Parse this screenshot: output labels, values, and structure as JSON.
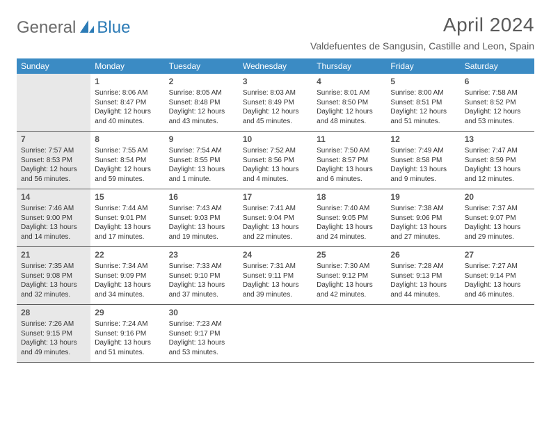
{
  "brand": {
    "general": "General",
    "blue": "Blue"
  },
  "header": {
    "month_title": "April 2024",
    "location": "Valdefuentes de Sangusin, Castille and Leon, Spain"
  },
  "weekdays": [
    "Sunday",
    "Monday",
    "Tuesday",
    "Wednesday",
    "Thursday",
    "Friday",
    "Saturday"
  ],
  "colors": {
    "header_bg": "#3b8bc4",
    "shaded_bg": "#e8e8e8",
    "text": "#333333",
    "muted": "#5a5a5a",
    "brand_blue": "#2c7bb6",
    "brand_gray": "#6b6b6b"
  },
  "weeks": [
    [
      {
        "empty": true,
        "shaded": true
      },
      {
        "day": "1",
        "sunrise": "Sunrise: 8:06 AM",
        "sunset": "Sunset: 8:47 PM",
        "daylight1": "Daylight: 12 hours",
        "daylight2": "and 40 minutes."
      },
      {
        "day": "2",
        "sunrise": "Sunrise: 8:05 AM",
        "sunset": "Sunset: 8:48 PM",
        "daylight1": "Daylight: 12 hours",
        "daylight2": "and 43 minutes."
      },
      {
        "day": "3",
        "sunrise": "Sunrise: 8:03 AM",
        "sunset": "Sunset: 8:49 PM",
        "daylight1": "Daylight: 12 hours",
        "daylight2": "and 45 minutes."
      },
      {
        "day": "4",
        "sunrise": "Sunrise: 8:01 AM",
        "sunset": "Sunset: 8:50 PM",
        "daylight1": "Daylight: 12 hours",
        "daylight2": "and 48 minutes."
      },
      {
        "day": "5",
        "sunrise": "Sunrise: 8:00 AM",
        "sunset": "Sunset: 8:51 PM",
        "daylight1": "Daylight: 12 hours",
        "daylight2": "and 51 minutes."
      },
      {
        "day": "6",
        "sunrise": "Sunrise: 7:58 AM",
        "sunset": "Sunset: 8:52 PM",
        "daylight1": "Daylight: 12 hours",
        "daylight2": "and 53 minutes."
      }
    ],
    [
      {
        "day": "7",
        "shaded": true,
        "sunrise": "Sunrise: 7:57 AM",
        "sunset": "Sunset: 8:53 PM",
        "daylight1": "Daylight: 12 hours",
        "daylight2": "and 56 minutes."
      },
      {
        "day": "8",
        "sunrise": "Sunrise: 7:55 AM",
        "sunset": "Sunset: 8:54 PM",
        "daylight1": "Daylight: 12 hours",
        "daylight2": "and 59 minutes."
      },
      {
        "day": "9",
        "sunrise": "Sunrise: 7:54 AM",
        "sunset": "Sunset: 8:55 PM",
        "daylight1": "Daylight: 13 hours",
        "daylight2": "and 1 minute."
      },
      {
        "day": "10",
        "sunrise": "Sunrise: 7:52 AM",
        "sunset": "Sunset: 8:56 PM",
        "daylight1": "Daylight: 13 hours",
        "daylight2": "and 4 minutes."
      },
      {
        "day": "11",
        "sunrise": "Sunrise: 7:50 AM",
        "sunset": "Sunset: 8:57 PM",
        "daylight1": "Daylight: 13 hours",
        "daylight2": "and 6 minutes."
      },
      {
        "day": "12",
        "sunrise": "Sunrise: 7:49 AM",
        "sunset": "Sunset: 8:58 PM",
        "daylight1": "Daylight: 13 hours",
        "daylight2": "and 9 minutes."
      },
      {
        "day": "13",
        "sunrise": "Sunrise: 7:47 AM",
        "sunset": "Sunset: 8:59 PM",
        "daylight1": "Daylight: 13 hours",
        "daylight2": "and 12 minutes."
      }
    ],
    [
      {
        "day": "14",
        "shaded": true,
        "sunrise": "Sunrise: 7:46 AM",
        "sunset": "Sunset: 9:00 PM",
        "daylight1": "Daylight: 13 hours",
        "daylight2": "and 14 minutes."
      },
      {
        "day": "15",
        "sunrise": "Sunrise: 7:44 AM",
        "sunset": "Sunset: 9:01 PM",
        "daylight1": "Daylight: 13 hours",
        "daylight2": "and 17 minutes."
      },
      {
        "day": "16",
        "sunrise": "Sunrise: 7:43 AM",
        "sunset": "Sunset: 9:03 PM",
        "daylight1": "Daylight: 13 hours",
        "daylight2": "and 19 minutes."
      },
      {
        "day": "17",
        "sunrise": "Sunrise: 7:41 AM",
        "sunset": "Sunset: 9:04 PM",
        "daylight1": "Daylight: 13 hours",
        "daylight2": "and 22 minutes."
      },
      {
        "day": "18",
        "sunrise": "Sunrise: 7:40 AM",
        "sunset": "Sunset: 9:05 PM",
        "daylight1": "Daylight: 13 hours",
        "daylight2": "and 24 minutes."
      },
      {
        "day": "19",
        "sunrise": "Sunrise: 7:38 AM",
        "sunset": "Sunset: 9:06 PM",
        "daylight1": "Daylight: 13 hours",
        "daylight2": "and 27 minutes."
      },
      {
        "day": "20",
        "sunrise": "Sunrise: 7:37 AM",
        "sunset": "Sunset: 9:07 PM",
        "daylight1": "Daylight: 13 hours",
        "daylight2": "and 29 minutes."
      }
    ],
    [
      {
        "day": "21",
        "shaded": true,
        "sunrise": "Sunrise: 7:35 AM",
        "sunset": "Sunset: 9:08 PM",
        "daylight1": "Daylight: 13 hours",
        "daylight2": "and 32 minutes."
      },
      {
        "day": "22",
        "sunrise": "Sunrise: 7:34 AM",
        "sunset": "Sunset: 9:09 PM",
        "daylight1": "Daylight: 13 hours",
        "daylight2": "and 34 minutes."
      },
      {
        "day": "23",
        "sunrise": "Sunrise: 7:33 AM",
        "sunset": "Sunset: 9:10 PM",
        "daylight1": "Daylight: 13 hours",
        "daylight2": "and 37 minutes."
      },
      {
        "day": "24",
        "sunrise": "Sunrise: 7:31 AM",
        "sunset": "Sunset: 9:11 PM",
        "daylight1": "Daylight: 13 hours",
        "daylight2": "and 39 minutes."
      },
      {
        "day": "25",
        "sunrise": "Sunrise: 7:30 AM",
        "sunset": "Sunset: 9:12 PM",
        "daylight1": "Daylight: 13 hours",
        "daylight2": "and 42 minutes."
      },
      {
        "day": "26",
        "sunrise": "Sunrise: 7:28 AM",
        "sunset": "Sunset: 9:13 PM",
        "daylight1": "Daylight: 13 hours",
        "daylight2": "and 44 minutes."
      },
      {
        "day": "27",
        "sunrise": "Sunrise: 7:27 AM",
        "sunset": "Sunset: 9:14 PM",
        "daylight1": "Daylight: 13 hours",
        "daylight2": "and 46 minutes."
      }
    ],
    [
      {
        "day": "28",
        "shaded": true,
        "sunrise": "Sunrise: 7:26 AM",
        "sunset": "Sunset: 9:15 PM",
        "daylight1": "Daylight: 13 hours",
        "daylight2": "and 49 minutes."
      },
      {
        "day": "29",
        "sunrise": "Sunrise: 7:24 AM",
        "sunset": "Sunset: 9:16 PM",
        "daylight1": "Daylight: 13 hours",
        "daylight2": "and 51 minutes."
      },
      {
        "day": "30",
        "sunrise": "Sunrise: 7:23 AM",
        "sunset": "Sunset: 9:17 PM",
        "daylight1": "Daylight: 13 hours",
        "daylight2": "and 53 minutes."
      },
      {
        "empty": true
      },
      {
        "empty": true
      },
      {
        "empty": true
      },
      {
        "empty": true
      }
    ]
  ]
}
